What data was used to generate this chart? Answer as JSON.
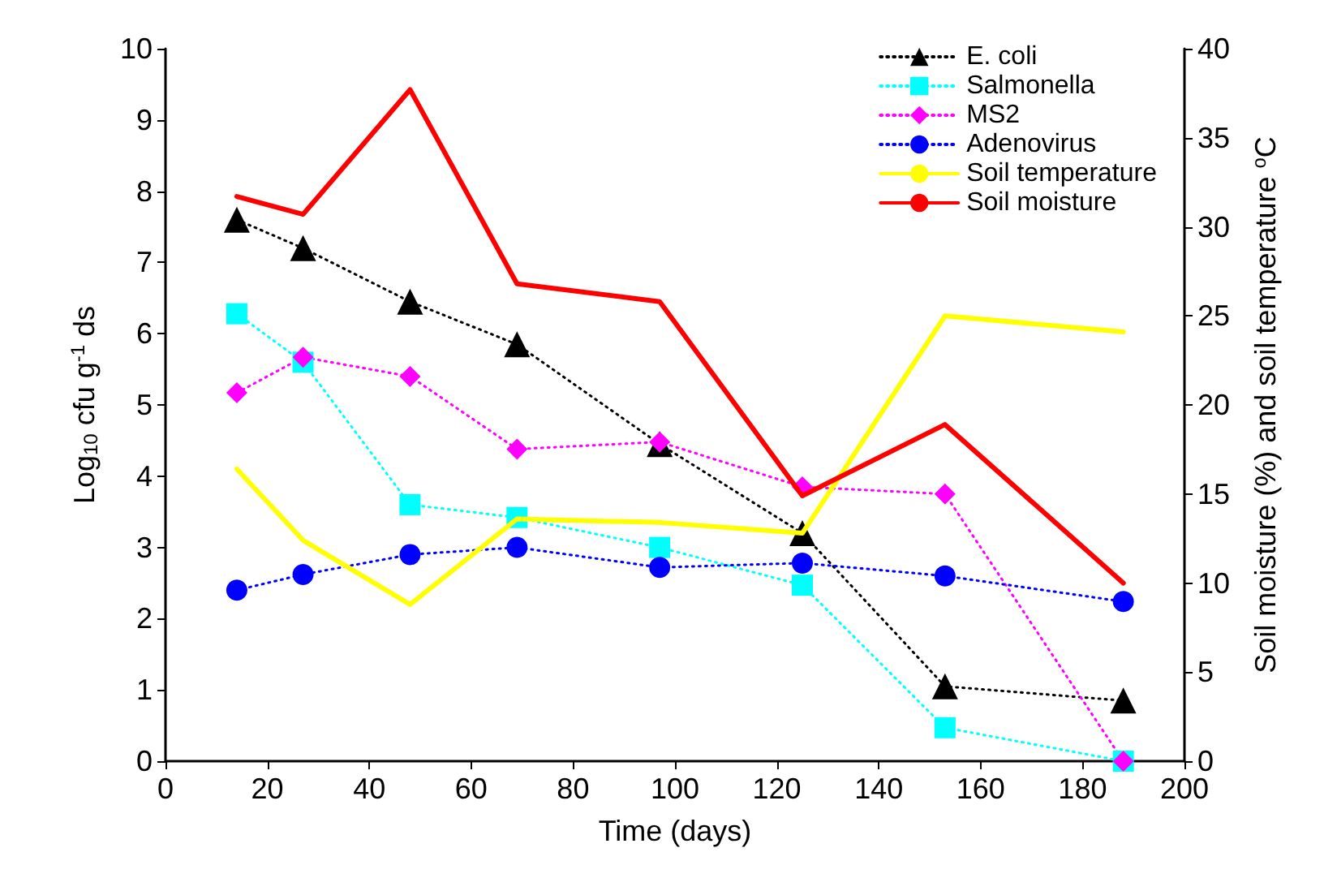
{
  "chart_data": {
    "type": "line",
    "xlabel": "Time (days)",
    "ylabel": "Log$_{10}$ cfu g$^{-1}$ ds",
    "y2label": "Soil moisture (%) and soil temperature $^{o}$C",
    "x": [
      14,
      27,
      48,
      69,
      97,
      125,
      153,
      188
    ],
    "xlim": [
      0,
      200
    ],
    "xticks": [
      0,
      20,
      40,
      60,
      80,
      100,
      120,
      140,
      160,
      180,
      200
    ],
    "ylim": [
      0,
      10
    ],
    "yticks": [
      0,
      1,
      2,
      3,
      4,
      5,
      6,
      7,
      8,
      9,
      10
    ],
    "y2lim": [
      0,
      40
    ],
    "y2ticks": [
      0,
      5,
      10,
      15,
      20,
      25,
      30,
      35,
      40
    ],
    "grid": false,
    "legend": "top right",
    "series": [
      {
        "name": "E. coli",
        "color": "#000000",
        "marker": "triangle",
        "line_style": "dotted",
        "values": [
          7.6,
          7.2,
          6.45,
          5.85,
          4.45,
          3.2,
          1.05,
          0.85
        ]
      },
      {
        "name": "Salmonella",
        "color": "#00ffff",
        "marker": "square",
        "line_style": "dotted",
        "values": [
          6.28,
          5.6,
          3.6,
          3.42,
          3.0,
          2.47,
          0.47,
          0.0
        ]
      },
      {
        "name": "MS2",
        "color": "#ff00ff",
        "marker": "diamond",
        "line_style": "dotted",
        "values": [
          5.17,
          5.67,
          5.4,
          4.38,
          4.48,
          3.85,
          3.75,
          0.0
        ]
      },
      {
        "name": "Adenovirus",
        "color": "#0000ff",
        "marker": "circle",
        "line_style": "dotted",
        "values": [
          2.4,
          2.62,
          2.9,
          3.0,
          2.72,
          2.78,
          2.6,
          2.24
        ]
      },
      {
        "name": "Soil temperature",
        "color": "#ffff00",
        "marker": "none",
        "line_style": "solid",
        "axis": "y2",
        "values": [
          16.4,
          12.4,
          8.8,
          13.6,
          13.4,
          12.8,
          25.0,
          24.1
        ]
      },
      {
        "name": "Soil moisture",
        "color": "#ff0000",
        "marker": "none",
        "line_style": "solid",
        "axis": "y2",
        "values": [
          31.7,
          30.7,
          37.7,
          26.8,
          25.8,
          14.9,
          18.9,
          10.0
        ]
      }
    ]
  }
}
